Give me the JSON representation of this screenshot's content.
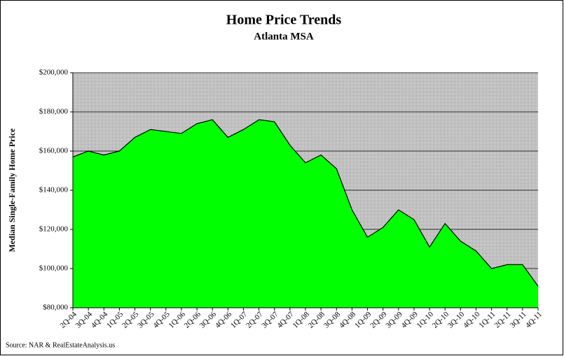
{
  "chart_data": {
    "type": "area",
    "title": "Home Price Trends",
    "subtitle": "Atlanta MSA",
    "y_label": "Median Single-Family Home Price",
    "source": "Source: NAR & RealEstateAnalysis.us",
    "categories": [
      "2Q-04",
      "3Q-04",
      "4Q-04",
      "1Q-05",
      "2Q-05",
      "3Q-05",
      "4Q-05",
      "1Q-06",
      "2Q-06",
      "3Q-06",
      "4Q-06",
      "1Q-07",
      "2Q-07",
      "3Q-07",
      "4Q-07",
      "1Q-08",
      "2Q-08",
      "3Q-08",
      "4Q-08",
      "1Q-09",
      "2Q-09",
      "3Q-09",
      "4Q-09",
      "1Q-10",
      "2Q-10",
      "3Q-10",
      "4Q-10",
      "1Q-11",
      "2Q-11",
      "3Q-11",
      "4Q-11"
    ],
    "values": [
      157000,
      160000,
      158000,
      160000,
      167000,
      171000,
      170000,
      169000,
      174000,
      176000,
      167000,
      171000,
      176000,
      175000,
      163000,
      154000,
      158000,
      151000,
      130000,
      116000,
      121000,
      130000,
      125000,
      111000,
      123000,
      114000,
      109000,
      100000,
      102000,
      102000,
      91000
    ],
    "color": "#00ff00",
    "ylim": [
      80000,
      200000
    ],
    "yticks": [
      {
        "value": 80000,
        "label": "$80,000"
      },
      {
        "value": 100000,
        "label": "$100,000"
      },
      {
        "value": 120000,
        "label": "$120,000"
      },
      {
        "value": 140000,
        "label": "$140,000"
      },
      {
        "value": 160000,
        "label": "$160,000"
      },
      {
        "value": 180000,
        "label": "$180,000"
      },
      {
        "value": 200000,
        "label": "$200,000"
      }
    ],
    "grid": true
  }
}
